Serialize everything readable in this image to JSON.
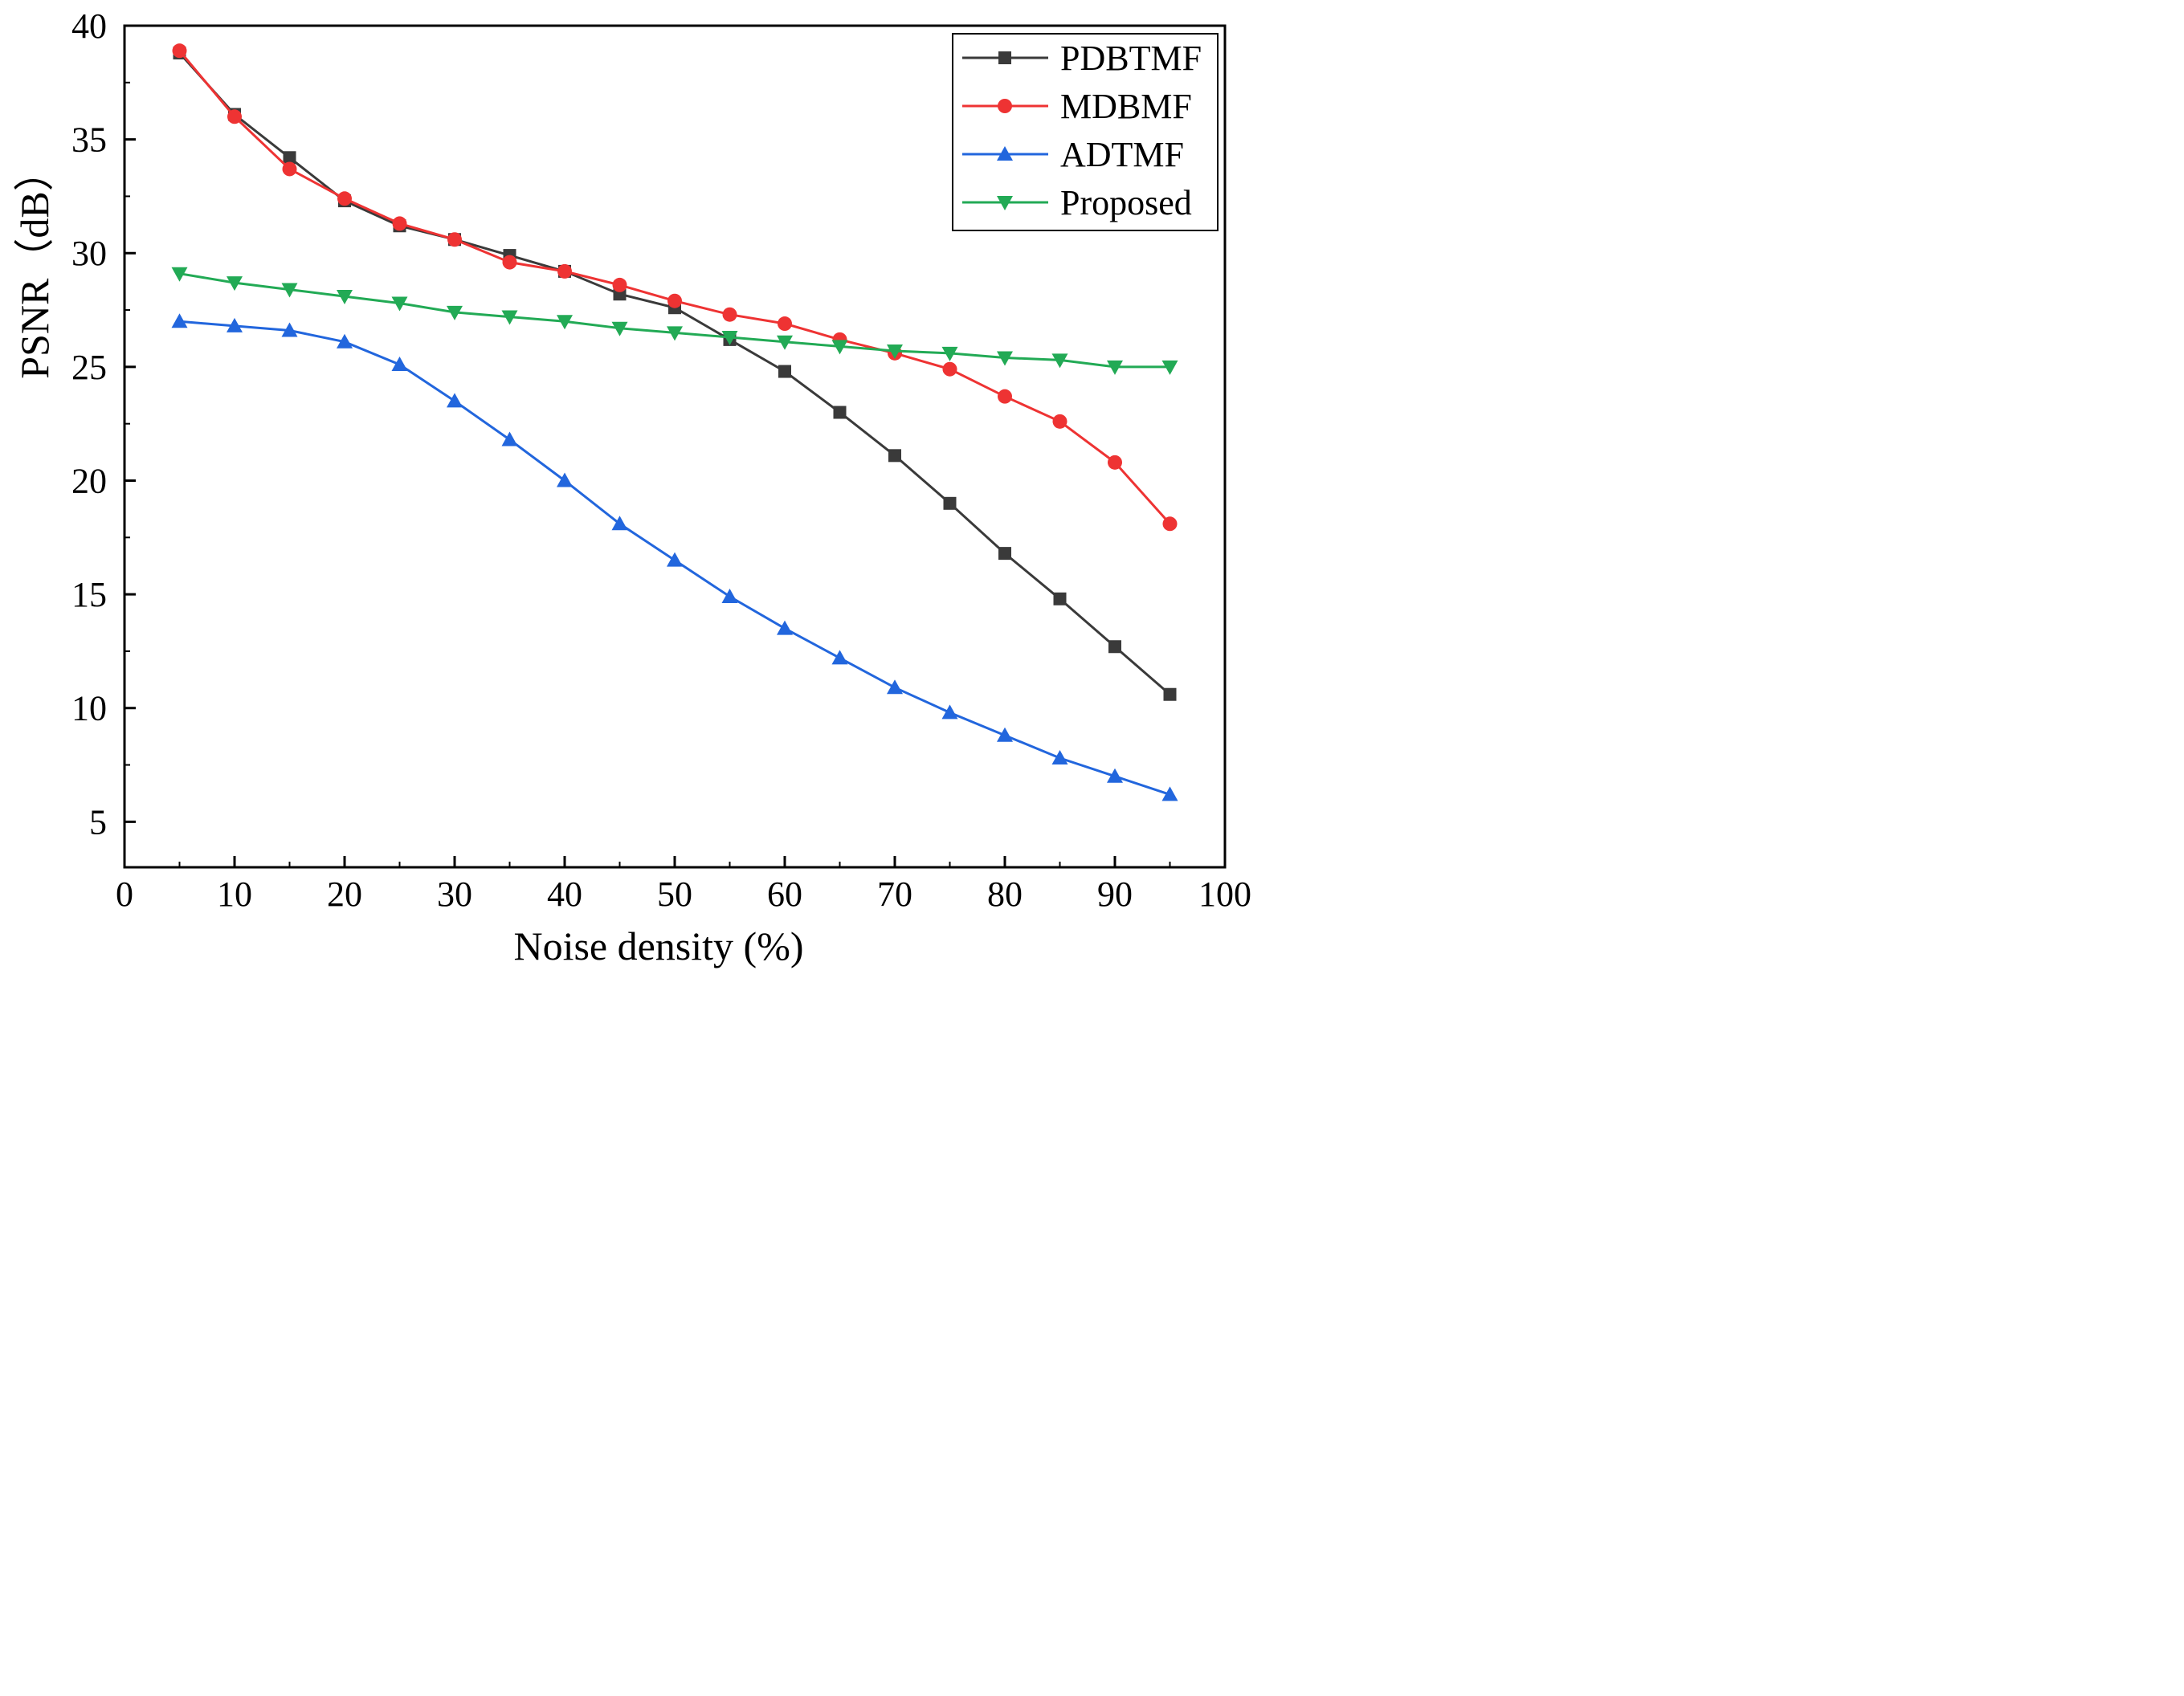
{
  "chart_data": {
    "type": "line",
    "title": "",
    "xlabel": "Noise density (%)",
    "ylabel": "PSNR（dB）",
    "xlim": [
      0,
      100
    ],
    "ylim": [
      3,
      40
    ],
    "xticks": [
      0,
      10,
      20,
      30,
      40,
      50,
      60,
      70,
      80,
      90,
      100
    ],
    "yticks": [
      5,
      10,
      15,
      20,
      25,
      30,
      35,
      40
    ],
    "grid": false,
    "legend_position": "top-right",
    "x": [
      5,
      10,
      15,
      20,
      25,
      30,
      35,
      40,
      45,
      50,
      55,
      60,
      65,
      70,
      75,
      80,
      85,
      90,
      95
    ],
    "series": [
      {
        "name": "PDBTMF",
        "color": "#3a3a3a",
        "marker": "square",
        "values": [
          38.8,
          36.1,
          34.2,
          32.3,
          31.2,
          30.6,
          29.9,
          29.2,
          28.2,
          27.6,
          26.2,
          24.8,
          23.0,
          21.1,
          19.0,
          16.8,
          14.8,
          12.7,
          10.6
        ]
      },
      {
        "name": "MDBMF",
        "color": "#ee3333",
        "marker": "circle",
        "values": [
          38.9,
          36.0,
          33.7,
          32.4,
          31.3,
          30.6,
          29.6,
          29.2,
          28.6,
          27.9,
          27.3,
          26.9,
          26.2,
          25.6,
          24.9,
          23.7,
          22.6,
          20.8,
          18.1
        ]
      },
      {
        "name": "ADTMF",
        "color": "#2266dd",
        "marker": "triangle-up",
        "values": [
          27.0,
          26.8,
          26.6,
          26.1,
          25.1,
          23.5,
          21.8,
          20.0,
          18.1,
          16.5,
          14.9,
          13.5,
          12.2,
          10.9,
          9.8,
          8.8,
          7.8,
          7.0,
          6.2
        ]
      },
      {
        "name": "Proposed",
        "color": "#22aa55",
        "marker": "triangle-down",
        "values": [
          29.1,
          28.7,
          28.4,
          28.1,
          27.8,
          27.4,
          27.2,
          27.0,
          26.7,
          26.5,
          26.3,
          26.1,
          25.9,
          25.7,
          25.6,
          25.4,
          25.3,
          25.0,
          25.0
        ]
      }
    ]
  }
}
